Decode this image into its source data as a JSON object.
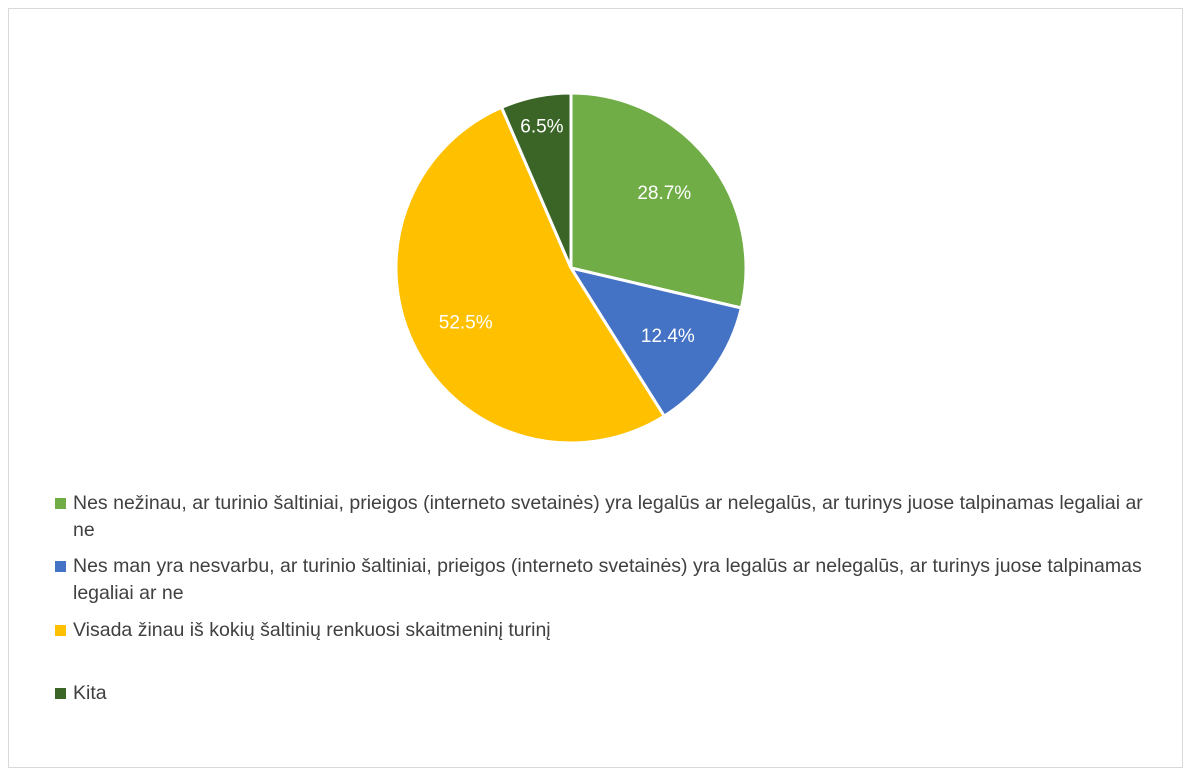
{
  "chart_data": {
    "type": "pie",
    "categories": [
      "Nes nežinau, ar turinio šaltiniai, prieigos (interneto svetainės) yra legalūs ar nelegalūs, ar turinys juose talpinamas legaliai ar ne",
      "Nes man yra nesvarbu, ar turinio šaltiniai, prieigos (interneto svetainės) yra legalūs ar nelegalūs, ar turinys juose talpinamas legaliai ar ne",
      "Visada žinau iš kokių šaltinių renkuosi skaitmeninį turinį",
      "Kita"
    ],
    "values": [
      28.7,
      12.4,
      52.5,
      6.5
    ],
    "value_labels": [
      "28.7%",
      "12.4%",
      "52.5%",
      "6.5%"
    ],
    "colors": [
      "#70ad47",
      "#4472c4",
      "#ffc000",
      "#3b6527"
    ],
    "legend": "bottom"
  }
}
